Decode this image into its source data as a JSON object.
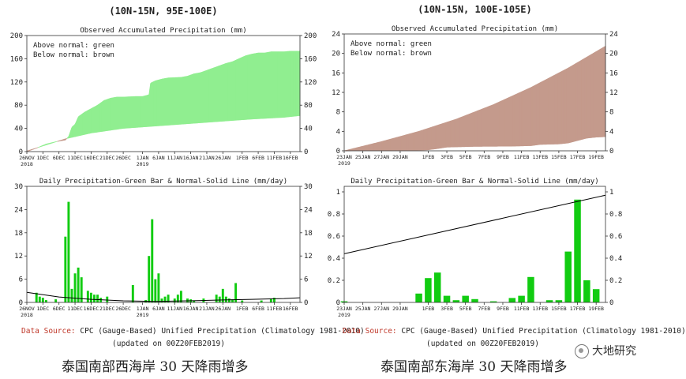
{
  "left": {
    "region": "(10N-15N, 95E-100E)",
    "acc": {
      "title": "Observed Accumulated Precipitation (mm)",
      "legend_above": "Above normal: green",
      "legend_below": "Below normal: brown"
    },
    "daily": {
      "title": "Daily Precipitation-Green Bar & Normal-Solid Line (mm/day)"
    },
    "caption": "泰国南部西海岸 30 天降雨增多"
  },
  "right": {
    "region": "(10N-15N, 100E-105E)",
    "acc": {
      "title": "Observed Accumulated Precipitation (mm)",
      "legend_above": "Above normal: green",
      "legend_below": "Below normal: brown"
    },
    "daily": {
      "title": "Daily Precipitation-Green Bar & Normal-Solid Line (mm/day)"
    },
    "caption": "泰国南部东海岸 30 天降雨增多"
  },
  "footer": {
    "left": {
      "source_label": "Data Source:",
      "source_text": "CPC (Gauge-Based) Unified Precipitation (Climatology 1981-2010)",
      "updated": "(updated on 00Z20FEB2019)"
    },
    "right": {
      "source_label": "Data Source:",
      "source_text": "CPC (Gauge-Based) Unified Precipitation (Climatology 1981-2010)",
      "updated": "(updated on 00Z20FEB2019)"
    }
  },
  "watermark": {
    "text": "大地研究",
    "icon": "wechat-icon"
  },
  "colors": {
    "above": "#90ee90",
    "below": "#c49a8c",
    "bar": "#11cc11",
    "normal": "#000000"
  },
  "chart_data": [
    {
      "id": "left-acc",
      "type": "area",
      "title": "Observed Accumulated Precipitation (mm)",
      "ylim": [
        0,
        200
      ],
      "yticks": [
        0,
        40,
        80,
        120,
        160,
        200
      ],
      "xlim": [
        0,
        85
      ],
      "xticks": [
        {
          "x": 0,
          "label": "26NOV",
          "sub": "2018"
        },
        {
          "x": 5,
          "label": "1DEC"
        },
        {
          "x": 10,
          "label": "6DEC"
        },
        {
          "x": 15,
          "label": "11DEC"
        },
        {
          "x": 20,
          "label": "16DEC"
        },
        {
          "x": 25,
          "label": "21DEC"
        },
        {
          "x": 30,
          "label": "26DEC"
        },
        {
          "x": 36,
          "label": "1JAN",
          "sub": "2019"
        },
        {
          "x": 41,
          "label": "6JAN"
        },
        {
          "x": 46,
          "label": "11JAN"
        },
        {
          "x": 51,
          "label": "16JAN"
        },
        {
          "x": 56,
          "label": "21JAN"
        },
        {
          "x": 61,
          "label": "26JAN"
        },
        {
          "x": 67,
          "label": "1FEB"
        },
        {
          "x": 72,
          "label": "6FEB"
        },
        {
          "x": 77,
          "label": "11FEB"
        },
        {
          "x": 82,
          "label": "16FEB"
        }
      ],
      "observed": [
        [
          0,
          0
        ],
        [
          3,
          6
        ],
        [
          6,
          13
        ],
        [
          9,
          17
        ],
        [
          12,
          20
        ],
        [
          13,
          26
        ],
        [
          14,
          42
        ],
        [
          15,
          47
        ],
        [
          16,
          60
        ],
        [
          18,
          68
        ],
        [
          20,
          74
        ],
        [
          22,
          80
        ],
        [
          24,
          88
        ],
        [
          26,
          92
        ],
        [
          28,
          94
        ],
        [
          30,
          94
        ],
        [
          34,
          95
        ],
        [
          36,
          95
        ],
        [
          38,
          98
        ],
        [
          38.5,
          118
        ],
        [
          40,
          122
        ],
        [
          42,
          125
        ],
        [
          44,
          127
        ],
        [
          48,
          128
        ],
        [
          50,
          130
        ],
        [
          52,
          134
        ],
        [
          54,
          136
        ],
        [
          56,
          140
        ],
        [
          58,
          144
        ],
        [
          60,
          148
        ],
        [
          62,
          152
        ],
        [
          64,
          155
        ],
        [
          66,
          160
        ],
        [
          68,
          165
        ],
        [
          70,
          168
        ],
        [
          72,
          170
        ],
        [
          74,
          170
        ],
        [
          76,
          172
        ],
        [
          78,
          172
        ],
        [
          80,
          172
        ],
        [
          82,
          173
        ],
        [
          85,
          173
        ]
      ],
      "normal": [
        [
          0,
          1
        ],
        [
          12,
          22
        ],
        [
          20,
          32
        ],
        [
          30,
          40
        ],
        [
          40,
          44
        ],
        [
          50,
          48
        ],
        [
          60,
          52
        ],
        [
          70,
          56
        ],
        [
          80,
          59
        ],
        [
          85,
          62
        ]
      ]
    },
    {
      "id": "left-daily",
      "type": "bar",
      "title": "Daily Precipitation-Green Bar & Normal-Solid Line (mm/day)",
      "ylim": [
        0,
        30
      ],
      "yticks": [
        0,
        6,
        12,
        18,
        24,
        30
      ],
      "xlim": [
        0,
        85
      ],
      "xticks": [
        {
          "x": 0,
          "label": "26NOV",
          "sub": "2018"
        },
        {
          "x": 5,
          "label": "1DEC"
        },
        {
          "x": 10,
          "label": "6DEC"
        },
        {
          "x": 15,
          "label": "11DEC"
        },
        {
          "x": 20,
          "label": "16DEC"
        },
        {
          "x": 25,
          "label": "21DEC"
        },
        {
          "x": 30,
          "label": "26DEC"
        },
        {
          "x": 36,
          "label": "1JAN",
          "sub": "2019"
        },
        {
          "x": 41,
          "label": "6JAN"
        },
        {
          "x": 46,
          "label": "11JAN"
        },
        {
          "x": 51,
          "label": "16JAN"
        },
        {
          "x": 56,
          "label": "21JAN"
        },
        {
          "x": 61,
          "label": "26JAN"
        },
        {
          "x": 67,
          "label": "1FEB"
        },
        {
          "x": 72,
          "label": "6FEB"
        },
        {
          "x": 77,
          "label": "11FEB"
        },
        {
          "x": 82,
          "label": "16FEB"
        }
      ],
      "bars": [
        [
          3,
          2.5
        ],
        [
          4,
          1.5
        ],
        [
          5,
          1.2
        ],
        [
          6,
          0.6
        ],
        [
          9,
          0.8
        ],
        [
          12,
          17
        ],
        [
          13,
          26
        ],
        [
          14,
          3.5
        ],
        [
          15,
          7.5
        ],
        [
          16,
          9
        ],
        [
          17,
          6.5
        ],
        [
          19,
          3
        ],
        [
          20,
          2.5
        ],
        [
          21,
          2
        ],
        [
          22,
          2
        ],
        [
          23,
          1.2
        ],
        [
          25,
          1.5
        ],
        [
          33,
          4.5
        ],
        [
          37,
          0.6
        ],
        [
          38,
          12
        ],
        [
          39,
          21.5
        ],
        [
          40,
          6
        ],
        [
          41,
          7.5
        ],
        [
          42,
          1
        ],
        [
          43,
          1.5
        ],
        [
          44,
          2
        ],
        [
          46,
          1
        ],
        [
          47,
          2
        ],
        [
          48,
          3
        ],
        [
          50,
          1
        ],
        [
          51,
          0.8
        ],
        [
          52,
          0.5
        ],
        [
          55,
          1
        ],
        [
          59,
          2
        ],
        [
          60,
          1.5
        ],
        [
          61,
          3.5
        ],
        [
          62,
          1.5
        ],
        [
          63,
          1
        ],
        [
          64,
          0.8
        ],
        [
          65,
          5
        ],
        [
          67,
          0.5
        ],
        [
          73,
          0.5
        ],
        [
          76,
          1
        ],
        [
          77,
          1.2
        ]
      ],
      "normal": [
        [
          0,
          2.6
        ],
        [
          10,
          1.4
        ],
        [
          20,
          0.8
        ],
        [
          30,
          0.4
        ],
        [
          40,
          0.25
        ],
        [
          50,
          0.4
        ],
        [
          60,
          0.6
        ],
        [
          70,
          0.8
        ],
        [
          80,
          1
        ],
        [
          85,
          1.2
        ]
      ]
    },
    {
      "id": "right-acc",
      "type": "area",
      "title": "Observed Accumulated Precipitation (mm)",
      "ylim": [
        0,
        24
      ],
      "yticks": [
        0,
        4,
        8,
        12,
        16,
        20,
        24
      ],
      "xlim": [
        0,
        28
      ],
      "xticks": [
        {
          "x": 0,
          "label": "23JAN",
          "sub": "2019"
        },
        {
          "x": 2,
          "label": "25JAN"
        },
        {
          "x": 4,
          "label": "27JAN"
        },
        {
          "x": 6,
          "label": "29JAN"
        },
        {
          "x": 9,
          "label": "1FEB"
        },
        {
          "x": 11,
          "label": "3FEB"
        },
        {
          "x": 13,
          "label": "5FEB"
        },
        {
          "x": 15,
          "label": "7FEB"
        },
        {
          "x": 17,
          "label": "9FEB"
        },
        {
          "x": 19,
          "label": "11FEB"
        },
        {
          "x": 21,
          "label": "13FEB"
        },
        {
          "x": 23,
          "label": "15FEB"
        },
        {
          "x": 25,
          "label": "17FEB"
        },
        {
          "x": 27,
          "label": "19FEB"
        }
      ],
      "observed": [
        [
          0,
          0
        ],
        [
          1,
          0.05
        ],
        [
          8,
          0.1
        ],
        [
          9,
          0.2
        ],
        [
          10,
          0.45
        ],
        [
          11,
          0.75
        ],
        [
          12,
          0.8
        ],
        [
          13,
          0.85
        ],
        [
          14,
          0.9
        ],
        [
          18,
          0.95
        ],
        [
          19,
          1
        ],
        [
          20,
          1.05
        ],
        [
          21,
          1.3
        ],
        [
          22,
          1.35
        ],
        [
          23,
          1.4
        ],
        [
          24,
          1.6
        ],
        [
          25,
          2.1
        ],
        [
          26,
          2.6
        ],
        [
          27,
          2.8
        ],
        [
          28,
          2.9
        ]
      ],
      "normal": [
        [
          0,
          0
        ],
        [
          4,
          1.9
        ],
        [
          8,
          4
        ],
        [
          12,
          6.5
        ],
        [
          16,
          9.5
        ],
        [
          20,
          13
        ],
        [
          24,
          17
        ],
        [
          28,
          21.5
        ]
      ]
    },
    {
      "id": "right-daily",
      "type": "bar",
      "title": "Daily Precipitation-Green Bar & Normal-Solid Line (mm/day)",
      "ylim": [
        0,
        1.05
      ],
      "yticks": [
        0,
        0.2,
        0.4,
        0.6,
        0.8,
        1
      ],
      "xlim": [
        0,
        28
      ],
      "xticks": [
        {
          "x": 0,
          "label": "23JAN",
          "sub": "2019"
        },
        {
          "x": 2,
          "label": "25JAN"
        },
        {
          "x": 4,
          "label": "27JAN"
        },
        {
          "x": 6,
          "label": "29JAN"
        },
        {
          "x": 9,
          "label": "1FEB"
        },
        {
          "x": 11,
          "label": "3FEB"
        },
        {
          "x": 13,
          "label": "5FEB"
        },
        {
          "x": 15,
          "label": "7FEB"
        },
        {
          "x": 17,
          "label": "9FEB"
        },
        {
          "x": 19,
          "label": "11FEB"
        },
        {
          "x": 21,
          "label": "13FEB"
        },
        {
          "x": 23,
          "label": "15FEB"
        },
        {
          "x": 25,
          "label": "17FEB"
        },
        {
          "x": 27,
          "label": "19FEB"
        }
      ],
      "bars": [
        [
          0,
          0.01
        ],
        [
          8,
          0.08
        ],
        [
          9,
          0.22
        ],
        [
          10,
          0.27
        ],
        [
          11,
          0.06
        ],
        [
          12,
          0.02
        ],
        [
          13,
          0.06
        ],
        [
          14,
          0.03
        ],
        [
          16,
          0.01
        ],
        [
          18,
          0.04
        ],
        [
          19,
          0.06
        ],
        [
          20,
          0.23
        ],
        [
          22,
          0.02
        ],
        [
          23,
          0.02
        ],
        [
          24,
          0.46
        ],
        [
          25,
          0.93
        ],
        [
          26,
          0.2
        ],
        [
          27,
          0.12
        ]
      ],
      "normal": [
        [
          0,
          0.44
        ],
        [
          28,
          0.97
        ]
      ]
    }
  ]
}
